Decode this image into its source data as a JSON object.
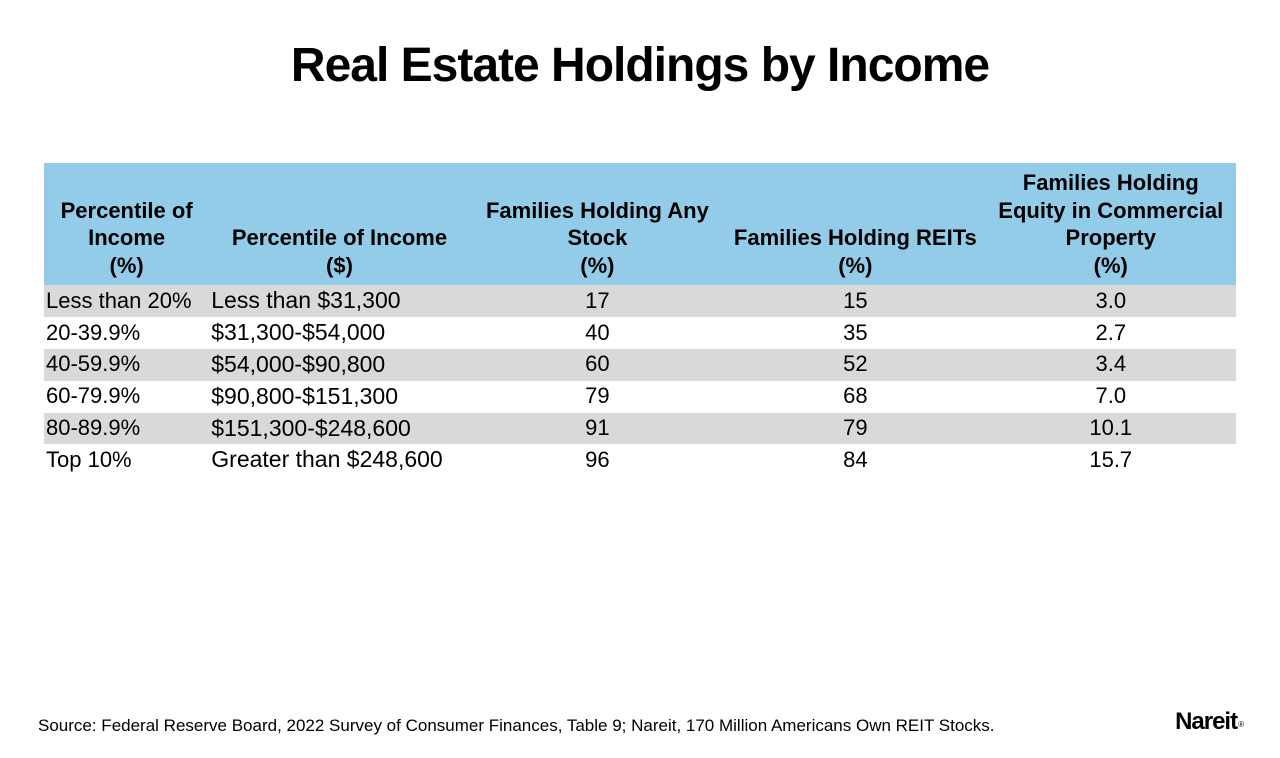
{
  "title": "Real Estate Holdings by Income",
  "table": {
    "header_bg": "#93cce8",
    "row_alt_bg": "#d9d9d9",
    "columns": [
      {
        "label": "Percentile of Income",
        "unit": "(%)"
      },
      {
        "label": "Percentile of Income",
        "unit": "($)"
      },
      {
        "label": "Families Holding Any Stock",
        "unit": "(%)"
      },
      {
        "label": "Families Holding REITs",
        "unit": "(%)"
      },
      {
        "label": "Families Holding Equity in Commercial Property",
        "unit": "(%)"
      }
    ],
    "rows": [
      [
        "Less than 20%",
        "Less than $31,300",
        "17",
        "15",
        "3.0"
      ],
      [
        "20-39.9%",
        "$31,300-$54,000",
        "40",
        "35",
        "2.7"
      ],
      [
        "40-59.9%",
        "$54,000-$90,800",
        "60",
        "52",
        "3.4"
      ],
      [
        "60-79.9%",
        "$90,800-$151,300",
        "79",
        "68",
        "7.0"
      ],
      [
        "80-89.9%",
        "$151,300-$248,600",
        "91",
        "79",
        "10.1"
      ],
      [
        "Top 10%",
        "Greater than $248,600",
        "96",
        "84",
        "15.7"
      ]
    ]
  },
  "source": "Source: Federal Reserve Board, 2022 Survey of Consumer Finances, Table 9; Nareit, 170 Million Americans Own REIT Stocks.",
  "logo": {
    "text": "Nareit",
    "registered": "®"
  }
}
